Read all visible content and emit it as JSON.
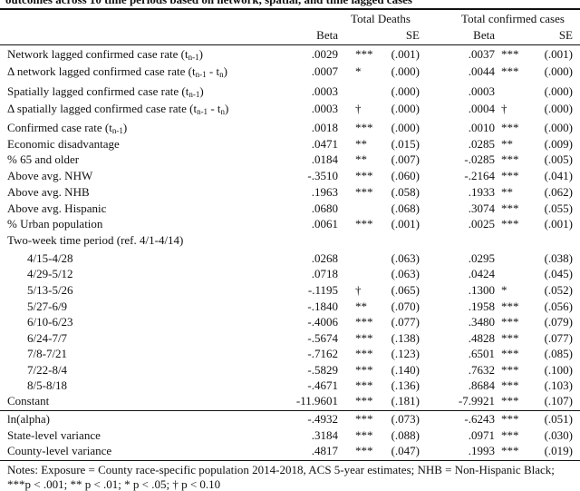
{
  "title": "outcomes across 10 time periods based on network, spatial, and time lagged cases",
  "columns": [
    {
      "title": "Total Deaths",
      "subheaders": [
        "Beta",
        "SE"
      ]
    },
    {
      "title": "Total confirmed cases",
      "subheaders": [
        "Beta",
        "SE"
      ]
    }
  ],
  "rows": [
    {
      "label": [
        {
          "text": "Network lagged confirmed case rate (t"
        },
        {
          "text": "n-1",
          "sub": true
        },
        {
          "text": ")"
        }
      ],
      "values": [
        {
          "beta": ".0029",
          "sig": "***",
          "se": "(.001)"
        },
        {
          "beta": ".0037",
          "sig": "***",
          "se": "(.001)"
        }
      ]
    },
    {
      "label": [
        {
          "text": "Δ network lagged confirmed case rate (t"
        },
        {
          "text": "n-1",
          "sub": true
        },
        {
          "text": " - t"
        },
        {
          "text": "n",
          "sub": true
        },
        {
          "text": ")"
        }
      ],
      "values": [
        {
          "beta": ".0007",
          "sig": "*",
          "se": "(.000)"
        },
        {
          "beta": ".0044",
          "sig": "***",
          "se": "(.000)"
        }
      ]
    },
    {
      "label": [
        {
          "text": "Spatially lagged confirmed case rate (t"
        },
        {
          "text": "n-1",
          "sub": true
        },
        {
          "text": ")"
        }
      ],
      "values": [
        {
          "beta": ".0003",
          "se": "(.000)"
        },
        {
          "beta": ".0003",
          "se": "(.000)"
        }
      ]
    },
    {
      "label": [
        {
          "text": "Δ spatially lagged confirmed case rate (t"
        },
        {
          "text": "n-1",
          "sub": true
        },
        {
          "text": " - t"
        },
        {
          "text": "n",
          "sub": true
        },
        {
          "text": ")"
        }
      ],
      "values": [
        {
          "beta": ".0003",
          "sig": "†",
          "se": "(.000)"
        },
        {
          "beta": ".0004",
          "sig": "†",
          "se": "(.000)"
        }
      ]
    },
    {
      "label": [
        {
          "text": "Confirmed case rate (t"
        },
        {
          "text": "n-1",
          "sub": true
        },
        {
          "text": ")"
        }
      ],
      "values": [
        {
          "beta": ".0018",
          "sig": "***",
          "se": "(.000)"
        },
        {
          "beta": ".0010",
          "sig": "***",
          "se": "(.000)"
        }
      ]
    },
    {
      "label": [
        {
          "text": "Economic disadvantage"
        }
      ],
      "values": [
        {
          "beta": ".0471",
          "sig": "**",
          "se": "(.015)"
        },
        {
          "beta": ".0285",
          "sig": "**",
          "se": "(.009)"
        }
      ]
    },
    {
      "label": [
        {
          "text": "% 65 and older"
        }
      ],
      "values": [
        {
          "beta": ".0184",
          "sig": "**",
          "se": "(.007)"
        },
        {
          "beta": "-.0285",
          "sig": "***",
          "se": "(.005)"
        }
      ]
    },
    {
      "label": [
        {
          "text": "Above avg. NHW"
        }
      ],
      "values": [
        {
          "beta": "-.3510",
          "sig": "***",
          "se": "(.060)"
        },
        {
          "beta": "-.2164",
          "sig": "***",
          "se": "(.041)"
        }
      ]
    },
    {
      "label": [
        {
          "text": "Above avg. NHB"
        }
      ],
      "values": [
        {
          "beta": ".1963",
          "sig": "***",
          "se": "(.058)"
        },
        {
          "beta": ".1933",
          "sig": "**",
          "se": "(.062)"
        }
      ]
    },
    {
      "label": [
        {
          "text": "Above avg. Hispanic"
        }
      ],
      "values": [
        {
          "beta": ".0680",
          "se": "(.068)"
        },
        {
          "beta": ".3074",
          "sig": "***",
          "se": "(.055)"
        }
      ]
    },
    {
      "label": [
        {
          "text": "% Urban population"
        }
      ],
      "values": [
        {
          "beta": ".0061",
          "sig": "***",
          "se": "(.001)"
        },
        {
          "beta": ".0025",
          "sig": "***",
          "se": "(.001)"
        }
      ]
    },
    {
      "label": [
        {
          "text": "Two-week time period (ref. 4/1-4/14)"
        }
      ],
      "rows": [
        {
          "label": [
            {
              "text": "4/15-4/28"
            }
          ],
          "values": [
            {
              "beta": ".0268",
              "se": "(.063)"
            },
            {
              "beta": ".0295",
              "se": "(.038)"
            }
          ]
        },
        {
          "label": [
            {
              "text": "4/29-5/12"
            }
          ],
          "values": [
            {
              "beta": ".0718",
              "se": "(.063)"
            },
            {
              "beta": ".0424",
              "se": "(.045)"
            }
          ]
        },
        {
          "label": [
            {
              "text": "5/13-5/26"
            }
          ],
          "values": [
            {
              "beta": "-.1195",
              "sig": "†",
              "se": "(.065)"
            },
            {
              "beta": ".1300",
              "sig": "*",
              "se": "(.052)"
            }
          ]
        },
        {
          "label": [
            {
              "text": "5/27-6/9"
            }
          ],
          "values": [
            {
              "beta": "-.1840",
              "sig": "**",
              "se": "(.070)"
            },
            {
              "beta": ".1958",
              "sig": "***",
              "se": "(.056)"
            }
          ]
        },
        {
          "label": [
            {
              "text": "6/10-6/23"
            }
          ],
          "values": [
            {
              "beta": "-.4006",
              "sig": "***",
              "se": "(.077)"
            },
            {
              "beta": ".3480",
              "sig": "***",
              "se": "(.079)"
            }
          ]
        },
        {
          "label": [
            {
              "text": "6/24-7/7"
            }
          ],
          "values": [
            {
              "beta": "-.5674",
              "sig": "***",
              "se": "(.138)"
            },
            {
              "beta": ".4828",
              "sig": "***",
              "se": "(.077)"
            }
          ]
        },
        {
          "label": [
            {
              "text": "7/8-7/21"
            }
          ],
          "values": [
            {
              "beta": "-.7162",
              "sig": "***",
              "se": "(.123)"
            },
            {
              "beta": ".6501",
              "sig": "***",
              "se": "(.085)"
            }
          ]
        },
        {
          "label": [
            {
              "text": "7/22-8/4"
            }
          ],
          "values": [
            {
              "beta": "-.5829",
              "sig": "***",
              "se": "(.140)"
            },
            {
              "beta": ".7632",
              "sig": "***",
              "se": "(.100)"
            }
          ]
        },
        {
          "label": [
            {
              "text": "8/5-8/18"
            }
          ],
          "values": [
            {
              "beta": "-.4671",
              "sig": "***",
              "se": "(.136)"
            },
            {
              "beta": ".8684",
              "sig": "***",
              "se": "(.103)"
            }
          ]
        }
      ]
    },
    {
      "label": [
        {
          "text": "Constant"
        }
      ],
      "values": [
        {
          "beta": "-11.9601",
          "sig": "***",
          "se": "(.181)"
        },
        {
          "beta": "-7.9921",
          "sig": "***",
          "se": "(.107)"
        }
      ]
    },
    {
      "label": [
        {
          "text": "ln(alpha)"
        }
      ],
      "values": [
        {
          "beta": "-.4932",
          "sig": "***",
          "se": "(.073)"
        },
        {
          "beta": "-.6243",
          "sig": "***",
          "se": "(.051)"
        }
      ]
    },
    {
      "label": [
        {
          "text": "State-level variance"
        }
      ],
      "values": [
        {
          "beta": ".3184",
          "sig": "***",
          "se": "(.088)"
        },
        {
          "beta": ".0971",
          "sig": "***",
          "se": "(.030)"
        }
      ]
    },
    {
      "label": [
        {
          "text": "County-level variance"
        }
      ],
      "values": [
        {
          "beta": ".4817",
          "sig": "***",
          "se": "(.047)"
        },
        {
          "beta": ".1993",
          "sig": "***",
          "se": "(.019)"
        }
      ]
    }
  ],
  "notes": "Notes: Exposure = County race-specific population 2014-2018, ACS 5-year estimates; NHB = Non-Hispanic Black; ***p < .001; ** p < .01; * p < .05; † p < 0.10"
}
